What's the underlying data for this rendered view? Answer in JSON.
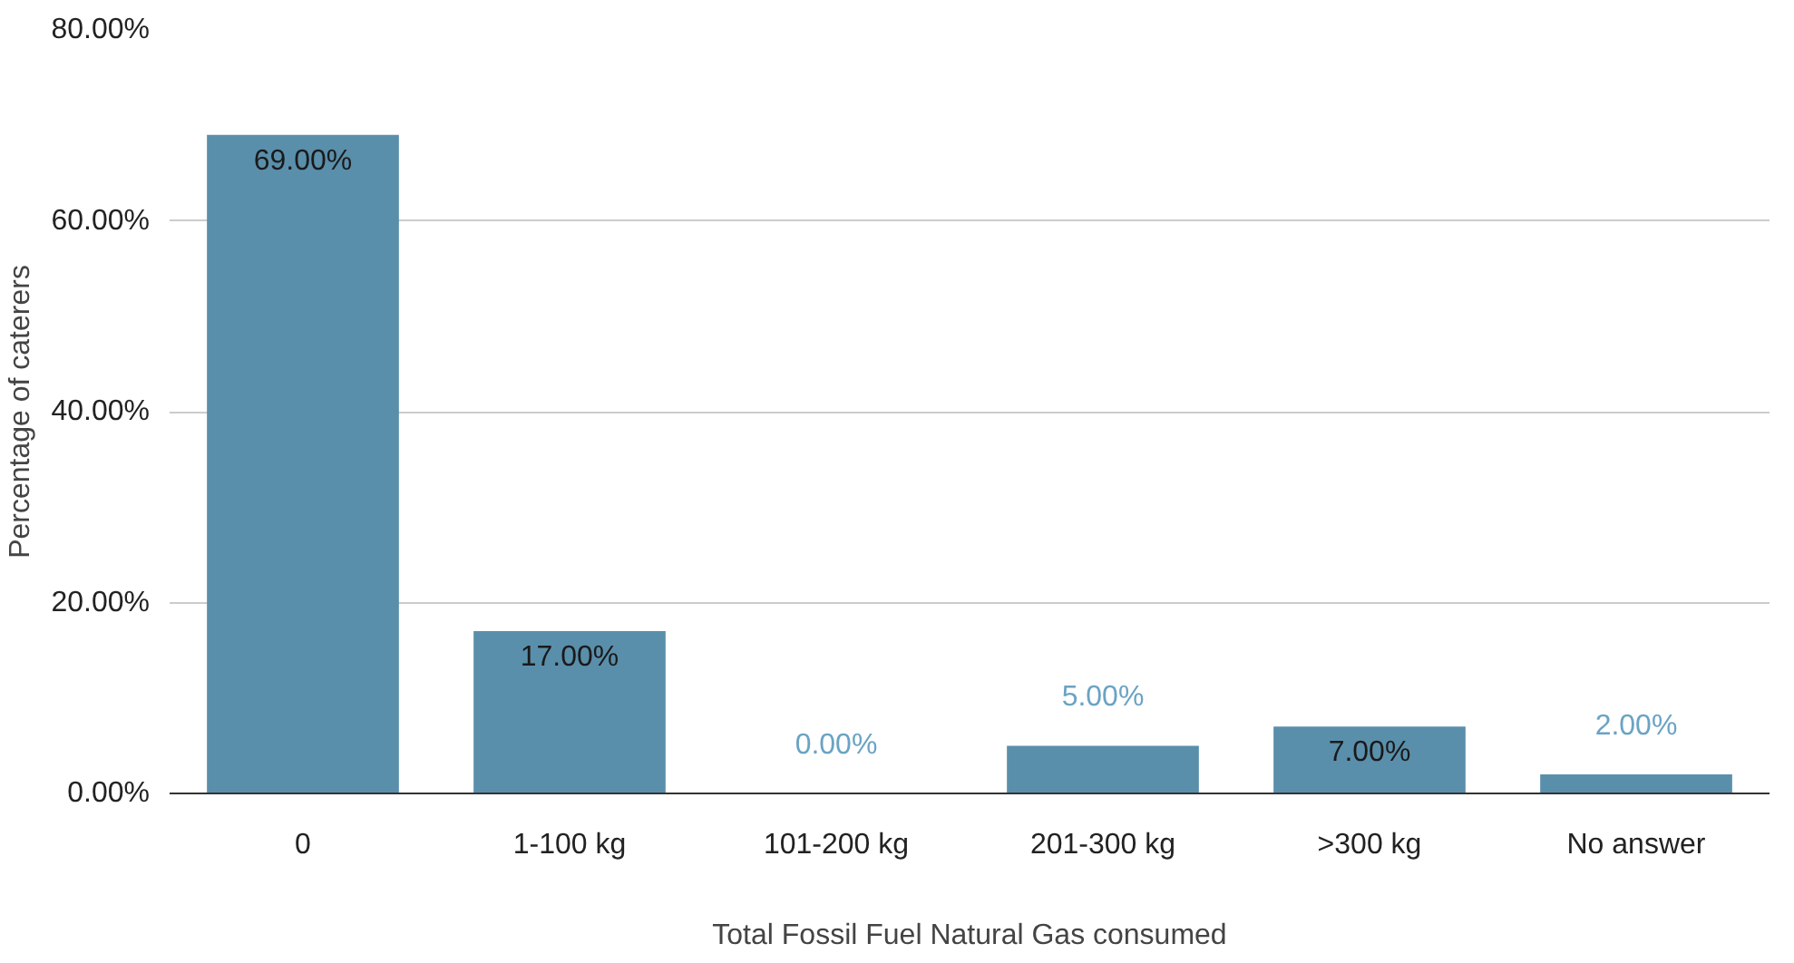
{
  "chart_data": {
    "type": "bar",
    "xlabel": "Total Fossil Fuel Natural Gas consumed",
    "ylabel": "Percentage of caterers",
    "categories": [
      "0",
      "1-100 kg",
      "101-200 kg",
      "201-300 kg",
      ">300 kg",
      "No answer"
    ],
    "values": [
      69,
      17,
      0,
      5,
      7,
      2
    ],
    "value_labels": [
      "69.00%",
      "17.00%",
      "0.00%",
      "5.00%",
      "7.00%",
      "2.00%"
    ],
    "color": "#5a8fab",
    "ylim": [
      0,
      80
    ],
    "yticks": [
      {
        "value": 0,
        "label": "0.00%"
      },
      {
        "value": 20,
        "label": "20.00%"
      },
      {
        "value": 40,
        "label": "40.00%"
      },
      {
        "value": 60,
        "label": "60.00%"
      },
      {
        "value": 80,
        "label": "80.00%"
      }
    ],
    "grid": "y"
  }
}
